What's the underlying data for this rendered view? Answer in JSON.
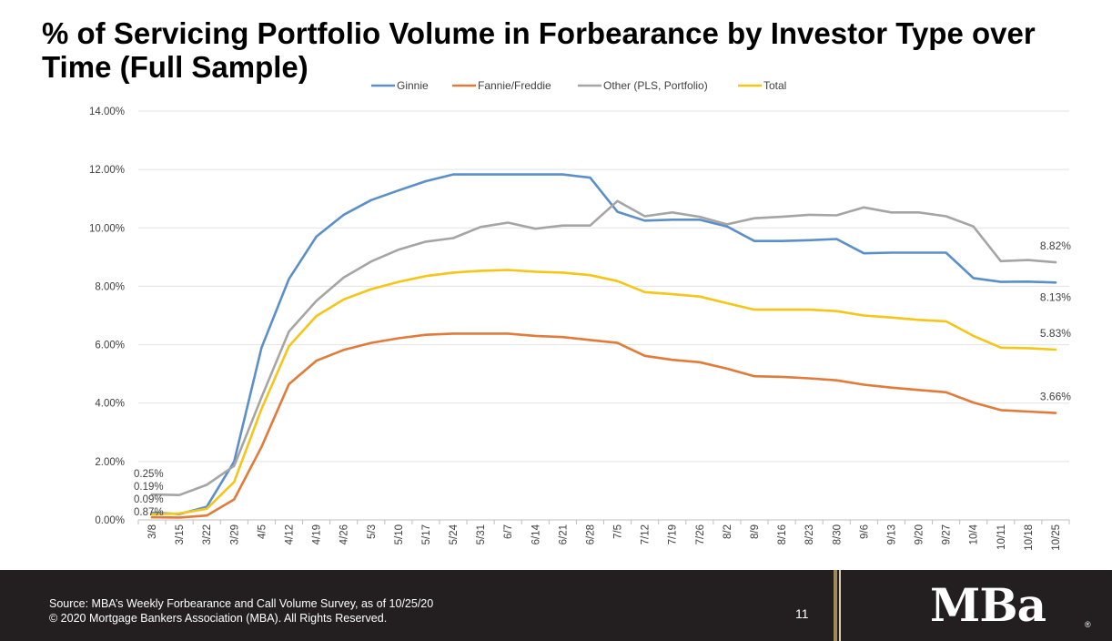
{
  "slide": {
    "title": "% of Servicing Portfolio Volume in Forbearance by Investor Type over Time (Full Sample)",
    "page_number": "11"
  },
  "footer": {
    "source": "Source: MBA’s Weekly Forbearance and Call Volume Survey, as of 10/25/20",
    "copyright": "© 2020 Mortgage Bankers Association (MBA). All Rights Reserved.",
    "logo_text": "MBa",
    "logo_mark": "®"
  },
  "chart_data": {
    "type": "line",
    "title": "",
    "xlabel": "",
    "ylabel": "",
    "ylim": [
      0,
      14
    ],
    "yticks": [
      "0.00%",
      "2.00%",
      "4.00%",
      "6.00%",
      "8.00%",
      "10.00%",
      "12.00%",
      "14.00%"
    ],
    "grid": true,
    "legend_position": "top",
    "categories": [
      "3/8",
      "3/15",
      "3/22",
      "3/29",
      "4/5",
      "4/12",
      "4/19",
      "4/26",
      "5/3",
      "5/10",
      "5/17",
      "5/24",
      "5/31",
      "6/7",
      "6/14",
      "6/21",
      "6/28",
      "7/5",
      "7/12",
      "7/19",
      "7/26",
      "8/2",
      "8/9",
      "8/16",
      "8/23",
      "8/30",
      "9/6",
      "9/13",
      "9/20",
      "9/27",
      "10/4",
      "10/11",
      "10/18",
      "10/25"
    ],
    "series": [
      {
        "name": "Ginnie",
        "color": "#5b8fc9",
        "values": [
          0.25,
          0.2,
          0.45,
          2.0,
          5.9,
          8.25,
          9.7,
          10.45,
          10.95,
          11.28,
          11.6,
          11.83,
          11.83,
          11.83,
          11.83,
          11.83,
          11.72,
          10.55,
          10.25,
          10.28,
          10.28,
          10.05,
          9.55,
          9.55,
          9.58,
          9.62,
          9.13,
          9.15,
          9.15,
          9.15,
          8.28,
          8.15,
          8.16,
          8.13
        ]
      },
      {
        "name": "Fannie/Freddie",
        "color": "#e07b39",
        "values": [
          0.09,
          0.08,
          0.15,
          0.7,
          2.5,
          4.65,
          5.45,
          5.82,
          6.06,
          6.22,
          6.34,
          6.38,
          6.38,
          6.38,
          6.3,
          6.26,
          6.16,
          6.06,
          5.62,
          5.48,
          5.4,
          5.18,
          4.92,
          4.9,
          4.85,
          4.78,
          4.63,
          4.53,
          4.45,
          4.37,
          4.02,
          3.76,
          3.71,
          3.66
        ]
      },
      {
        "name": "Other (PLS, Portfolio)",
        "color": "#a5a5a5",
        "values": [
          0.87,
          0.85,
          1.2,
          1.85,
          4.2,
          6.45,
          7.5,
          8.3,
          8.85,
          9.25,
          9.53,
          9.65,
          10.03,
          10.18,
          9.97,
          10.08,
          10.08,
          10.92,
          10.4,
          10.53,
          10.38,
          10.12,
          10.33,
          10.38,
          10.45,
          10.43,
          10.7,
          10.53,
          10.53,
          10.4,
          10.05,
          8.86,
          8.9,
          8.82
        ]
      },
      {
        "name": "Total",
        "color": "#f5c518",
        "values": [
          0.19,
          0.22,
          0.38,
          1.3,
          3.8,
          5.95,
          6.98,
          7.55,
          7.9,
          8.15,
          8.35,
          8.47,
          8.53,
          8.56,
          8.5,
          8.47,
          8.38,
          8.18,
          7.8,
          7.73,
          7.65,
          7.42,
          7.2,
          7.2,
          7.2,
          7.15,
          7.0,
          6.93,
          6.85,
          6.8,
          6.3,
          5.9,
          5.88,
          5.83
        ]
      }
    ],
    "start_labels": [
      "0.25%",
      "0.19%",
      "0.09%",
      "0.87%"
    ],
    "end_labels": {
      "Other (PLS, Portfolio)": "8.82%",
      "Ginnie": "8.13%",
      "Total": "5.83%",
      "Fannie/Freddie": "3.66%"
    }
  }
}
